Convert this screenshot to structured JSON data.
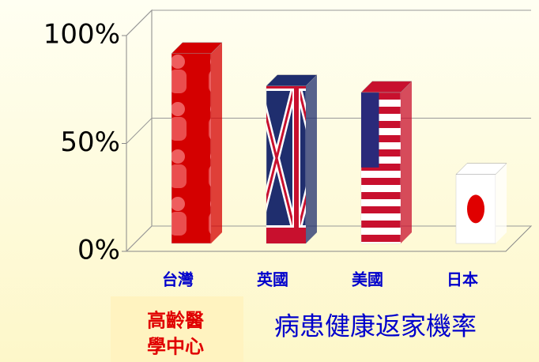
{
  "chart_data": {
    "type": "bar3d",
    "title": "病患健康返家機率",
    "source": [
      "高齡醫",
      "學中心"
    ],
    "categories": [
      "台灣",
      "英國",
      "美國",
      "日本"
    ],
    "values": [
      88,
      73,
      70,
      32
    ],
    "colors": [
      "#d40000",
      "#1f2e6e",
      "#c8102e",
      "#ffffff"
    ],
    "ylim": [
      0,
      100
    ],
    "yticks": [
      {
        "value": 0,
        "label": "0%"
      },
      {
        "value": 50,
        "label": "50%"
      },
      {
        "value": 100,
        "label": "100%"
      }
    ],
    "grid": true
  }
}
